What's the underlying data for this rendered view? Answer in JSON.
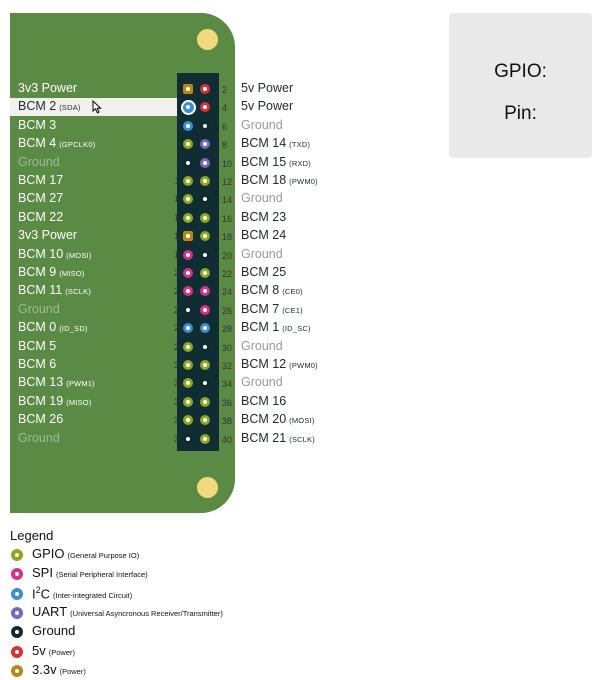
{
  "pins": [
    {
      "pin": 1,
      "type": "p33",
      "name": "3v3 Power",
      "sub": ""
    },
    {
      "pin": 2,
      "type": "p5",
      "name": "5v Power",
      "sub": ""
    },
    {
      "pin": 3,
      "type": "i2c",
      "name": "BCM 2",
      "sub": "(SDA)"
    },
    {
      "pin": 4,
      "type": "p5",
      "name": "5v Power",
      "sub": ""
    },
    {
      "pin": 5,
      "type": "i2c",
      "name": "BCM 3",
      "sub": ""
    },
    {
      "pin": 6,
      "type": "gnd",
      "name": "Ground",
      "sub": ""
    },
    {
      "pin": 7,
      "type": "gpio",
      "name": "BCM 4",
      "sub": "(GPCLK0)"
    },
    {
      "pin": 8,
      "type": "uart",
      "name": "BCM 14",
      "sub": "(TXD)"
    },
    {
      "pin": 9,
      "type": "gnd",
      "name": "Ground",
      "sub": ""
    },
    {
      "pin": 10,
      "type": "uart",
      "name": "BCM 15",
      "sub": "(RXD)"
    },
    {
      "pin": 11,
      "type": "gpio",
      "name": "BCM 17",
      "sub": ""
    },
    {
      "pin": 12,
      "type": "gpio",
      "name": "BCM 18",
      "sub": "(PWM0)"
    },
    {
      "pin": 13,
      "type": "gpio",
      "name": "BCM 27",
      "sub": ""
    },
    {
      "pin": 14,
      "type": "gnd",
      "name": "Ground",
      "sub": ""
    },
    {
      "pin": 15,
      "type": "gpio",
      "name": "BCM 22",
      "sub": ""
    },
    {
      "pin": 16,
      "type": "gpio",
      "name": "BCM 23",
      "sub": ""
    },
    {
      "pin": 17,
      "type": "p33",
      "name": "3v3 Power",
      "sub": ""
    },
    {
      "pin": 18,
      "type": "gpio",
      "name": "BCM 24",
      "sub": ""
    },
    {
      "pin": 19,
      "type": "spi",
      "name": "BCM 10",
      "sub": "(MOSI)"
    },
    {
      "pin": 20,
      "type": "gnd",
      "name": "Ground",
      "sub": ""
    },
    {
      "pin": 21,
      "type": "spi",
      "name": "BCM 9",
      "sub": "(MISO)"
    },
    {
      "pin": 22,
      "type": "gpio",
      "name": "BCM 25",
      "sub": ""
    },
    {
      "pin": 23,
      "type": "spi",
      "name": "BCM 11",
      "sub": "(SCLK)"
    },
    {
      "pin": 24,
      "type": "spi",
      "name": "BCM 8",
      "sub": "(CE0)"
    },
    {
      "pin": 25,
      "type": "gnd",
      "name": "Ground",
      "sub": ""
    },
    {
      "pin": 26,
      "type": "spi",
      "name": "BCM 7",
      "sub": "(CE1)"
    },
    {
      "pin": 27,
      "type": "i2c",
      "name": "BCM 0",
      "sub": "(ID_SD)"
    },
    {
      "pin": 28,
      "type": "i2c",
      "name": "BCM 1",
      "sub": "(ID_SC)"
    },
    {
      "pin": 29,
      "type": "gpio",
      "name": "BCM 5",
      "sub": ""
    },
    {
      "pin": 30,
      "type": "gnd",
      "name": "Ground",
      "sub": ""
    },
    {
      "pin": 31,
      "type": "gpio",
      "name": "BCM 6",
      "sub": ""
    },
    {
      "pin": 32,
      "type": "gpio",
      "name": "BCM 12",
      "sub": "(PWM0)"
    },
    {
      "pin": 33,
      "type": "gpio",
      "name": "BCM 13",
      "sub": "(PWM1)"
    },
    {
      "pin": 34,
      "type": "gnd",
      "name": "Ground",
      "sub": ""
    },
    {
      "pin": 35,
      "type": "gpio",
      "name": "BCM 19",
      "sub": "(MISO)"
    },
    {
      "pin": 36,
      "type": "gpio",
      "name": "BCM 16",
      "sub": ""
    },
    {
      "pin": 37,
      "type": "gpio",
      "name": "BCM 26",
      "sub": ""
    },
    {
      "pin": 38,
      "type": "gpio",
      "name": "BCM 20",
      "sub": "(MOSI)"
    },
    {
      "pin": 39,
      "type": "gnd",
      "name": "Ground",
      "sub": ""
    },
    {
      "pin": 40,
      "type": "gpio",
      "name": "BCM 21",
      "sub": "(SCLK)"
    }
  ],
  "highlighted_pin": 3,
  "colors": {
    "gpio": "#8da81f",
    "spi": "#d6308a",
    "i2c": "#3b8fd0",
    "uart": "#7866c2",
    "gnd": "#0d2b2f",
    "p5": "#dc2f35",
    "p33": "#b88814",
    "board": "#5b8a45",
    "header": "#102d33",
    "mount_hole": "#f2d97e"
  },
  "info_panel": {
    "gpio_label": "GPIO:",
    "pin_label": "Pin:"
  },
  "legend": {
    "title": "Legend",
    "items": [
      {
        "type": "gpio",
        "label": "GPIO",
        "sub": "(General Purpose IO)",
        "sup": ""
      },
      {
        "type": "spi",
        "label": "SPI",
        "sub": "(Serial Peripheral Interface)",
        "sup": ""
      },
      {
        "type": "i2c",
        "label": "I",
        "sup": "2",
        "label2": "C",
        "sub": "(Inter-integrated Circuit)"
      },
      {
        "type": "uart",
        "label": "UART",
        "sub": "(Universal Asyncronous Receiver/Transmitter)",
        "sup": ""
      },
      {
        "type": "gnd",
        "label": "Ground",
        "sub": "",
        "sup": ""
      },
      {
        "type": "p5",
        "label": "5v",
        "sub": "(Power)",
        "sup": ""
      },
      {
        "type": "p33",
        "label": "3.3v",
        "sub": "(Power)",
        "sup": ""
      }
    ]
  }
}
